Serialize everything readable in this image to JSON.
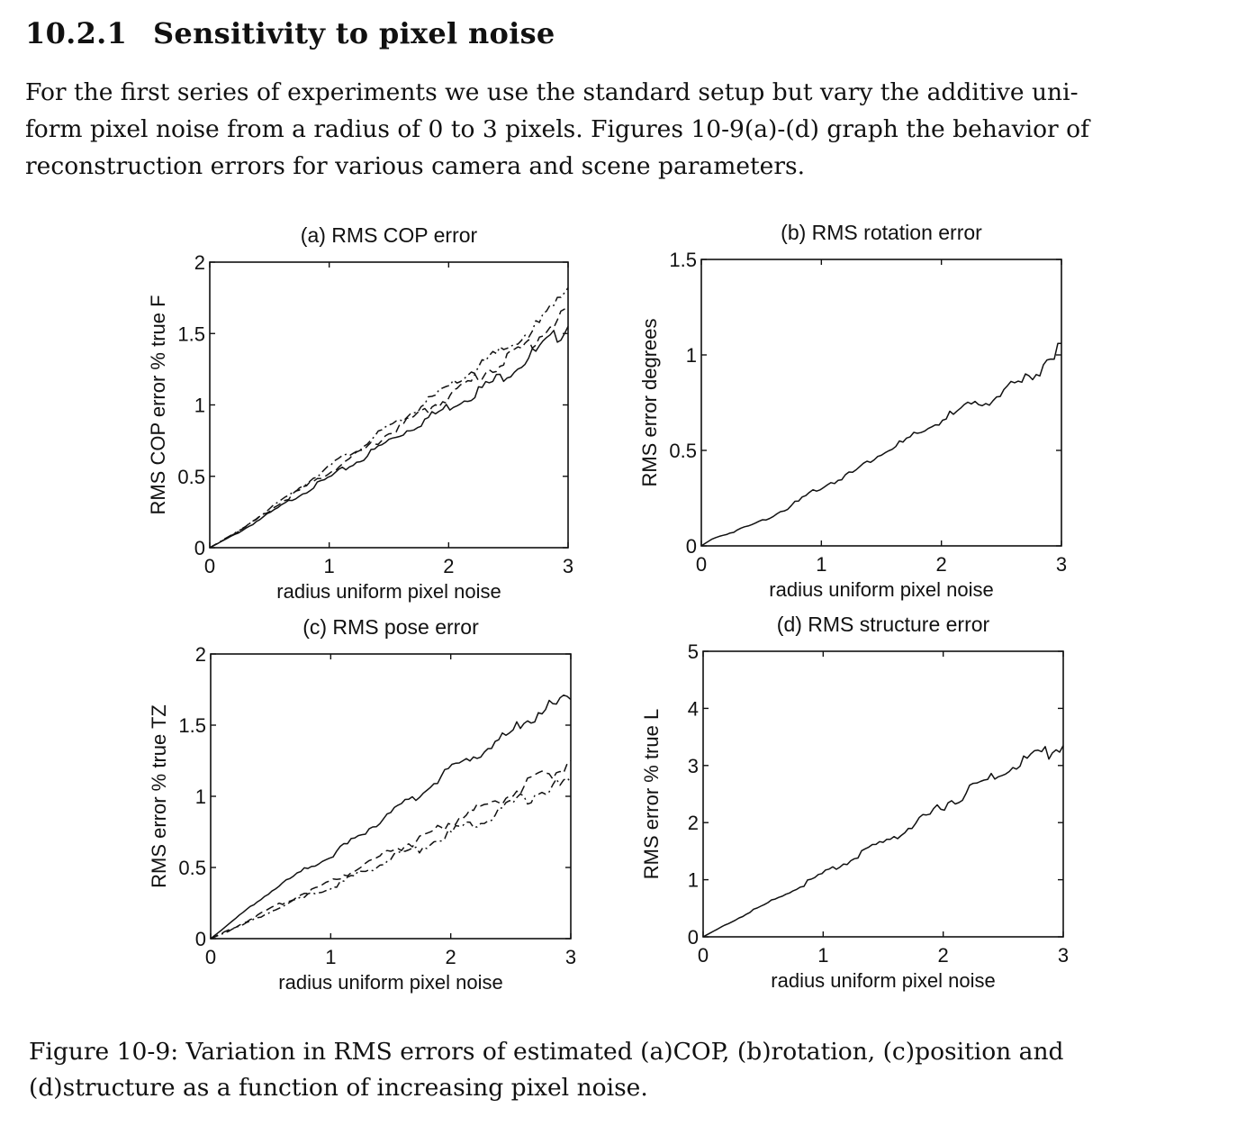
{
  "section": {
    "number": "10.2.1",
    "title": "Sensitivity to pixel noise"
  },
  "paragraph_lines": [
    "For the first series of experiments we use the standard setup but vary the additive uni-",
    "form pixel noise from a radius of 0 to 3 pixels.  Figures 10-9(a)-(d) graph the behavior of",
    "reconstruction errors for various camera and scene parameters."
  ],
  "caption_lines": [
    "Figure 10-9:  Variation in RMS errors of estimated (a)COP, (b)rotation, (c)position and",
    "(d)structure as a function of increasing pixel noise."
  ],
  "chart_data": [
    {
      "id": "a",
      "type": "line",
      "title": "(a) RMS COP error",
      "xlabel": "radius uniform pixel noise",
      "ylabel": "RMS COP error % true F",
      "xlim": [
        0,
        3
      ],
      "ylim": [
        0,
        2
      ],
      "xticks": [
        "0",
        "1",
        "2",
        "3"
      ],
      "yticks": [
        "0",
        "0.5",
        "1",
        "1.5",
        "2"
      ],
      "grid": false,
      "x": [
        0,
        0.25,
        0.5,
        0.75,
        1.0,
        1.25,
        1.5,
        1.75,
        2.0,
        2.25,
        2.5,
        2.75,
        3.0
      ],
      "series": [
        {
          "style": "solid",
          "values": [
            0,
            0.11,
            0.24,
            0.37,
            0.49,
            0.61,
            0.75,
            0.87,
            0.99,
            1.1,
            1.23,
            1.38,
            1.55
          ]
        },
        {
          "style": "dashed",
          "values": [
            0,
            0.12,
            0.26,
            0.4,
            0.53,
            0.66,
            0.8,
            0.93,
            1.06,
            1.2,
            1.33,
            1.47,
            1.68
          ]
        },
        {
          "style": "dashdot",
          "values": [
            0,
            0.12,
            0.27,
            0.42,
            0.57,
            0.7,
            0.84,
            0.98,
            1.12,
            1.27,
            1.4,
            1.56,
            1.82
          ]
        }
      ]
    },
    {
      "id": "b",
      "type": "line",
      "title": "(b) RMS rotation error",
      "xlabel": "radius uniform pixel noise",
      "ylabel": "RMS error degrees",
      "xlim": [
        0,
        3
      ],
      "ylim": [
        0,
        1.5
      ],
      "xticks": [
        "0",
        "1",
        "2",
        "3"
      ],
      "yticks": [
        "0",
        "0.5",
        "1",
        "1.5"
      ],
      "grid": false,
      "x": [
        0,
        0.1,
        0.25,
        0.5,
        0.75,
        1.0,
        1.25,
        1.5,
        1.75,
        2.0,
        2.25,
        2.5,
        2.75,
        3.0
      ],
      "series": [
        {
          "style": "solid",
          "values": [
            0,
            0.04,
            0.07,
            0.13,
            0.21,
            0.31,
            0.38,
            0.49,
            0.56,
            0.66,
            0.73,
            0.8,
            0.88,
            1.06
          ]
        }
      ]
    },
    {
      "id": "c",
      "type": "line",
      "title": "(c) RMS pose error",
      "xlabel": "radius uniform pixel noise",
      "ylabel": "RMS error % true TZ",
      "xlim": [
        0,
        3
      ],
      "ylim": [
        0,
        2
      ],
      "xticks": [
        "0",
        "1",
        "2",
        "3"
      ],
      "yticks": [
        "0",
        "0.5",
        "1",
        "1.5",
        "2"
      ],
      "grid": false,
      "x": [
        0,
        0.25,
        0.5,
        0.75,
        1.0,
        1.25,
        1.5,
        1.75,
        2.0,
        2.25,
        2.5,
        2.75,
        3.0
      ],
      "series": [
        {
          "style": "solid",
          "values": [
            0,
            0.17,
            0.33,
            0.47,
            0.58,
            0.73,
            0.88,
            1.02,
            1.19,
            1.31,
            1.45,
            1.6,
            1.68
          ]
        },
        {
          "style": "dashed",
          "values": [
            0,
            0.1,
            0.21,
            0.31,
            0.4,
            0.51,
            0.62,
            0.7,
            0.82,
            0.92,
            1.02,
            1.12,
            1.25
          ]
        },
        {
          "style": "dashdot",
          "values": [
            0,
            0.09,
            0.19,
            0.28,
            0.36,
            0.46,
            0.56,
            0.64,
            0.74,
            0.84,
            0.94,
            1.03,
            1.1
          ]
        }
      ]
    },
    {
      "id": "d",
      "type": "line",
      "title": "(d) RMS structure error",
      "xlabel": "radius uniform pixel noise",
      "ylabel": "RMS error % true L",
      "xlim": [
        0,
        3
      ],
      "ylim": [
        0,
        5
      ],
      "xticks": [
        "0",
        "1",
        "2",
        "3"
      ],
      "yticks": [
        "0",
        "1",
        "2",
        "3",
        "4",
        "5"
      ],
      "grid": false,
      "x": [
        0,
        0.25,
        0.5,
        0.75,
        1.0,
        1.25,
        1.5,
        1.75,
        2.0,
        2.25,
        2.5,
        2.75,
        3.0
      ],
      "series": [
        {
          "style": "solid",
          "values": [
            0,
            0.28,
            0.55,
            0.82,
            1.1,
            1.37,
            1.65,
            1.95,
            2.3,
            2.6,
            2.9,
            3.15,
            3.35
          ]
        }
      ]
    }
  ]
}
